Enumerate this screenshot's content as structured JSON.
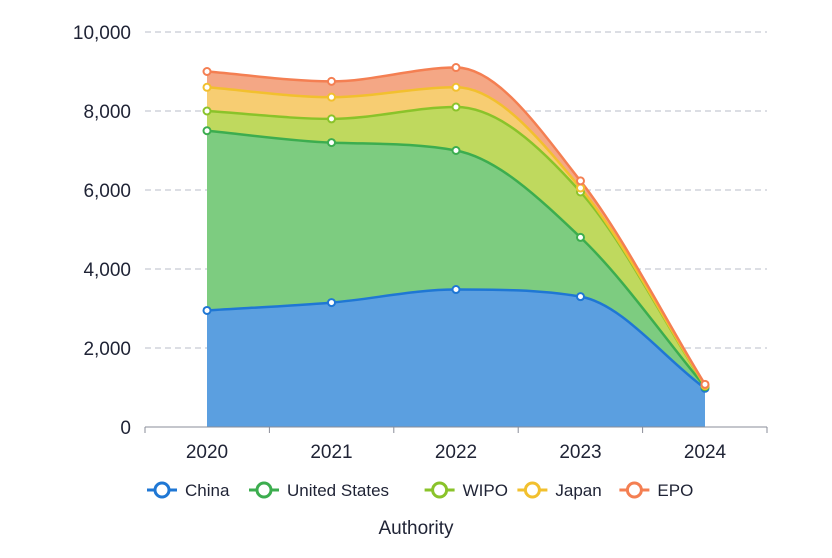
{
  "chart_data": {
    "type": "area",
    "stacked": true,
    "x": [
      "2020",
      "2021",
      "2022",
      "2023",
      "2024"
    ],
    "ylim": [
      0,
      10000
    ],
    "yticks": [
      "0",
      "2,000",
      "4,000",
      "6,000",
      "8,000",
      "10,000"
    ],
    "grid": true,
    "legend_position": "bottom",
    "xlabel": "Authority",
    "ylabel": "",
    "series": [
      {
        "name": "China",
        "values": [
          2950,
          3150,
          3480,
          3300,
          980
        ],
        "color": "#1f77d4",
        "fill": "#5b9fe0"
      },
      {
        "name": "United States",
        "values": [
          4550,
          4050,
          3520,
          1500,
          40
        ],
        "color": "#3cad4f",
        "fill": "#7dcc80"
      },
      {
        "name": "WIPO",
        "values": [
          500,
          600,
          1100,
          1150,
          20
        ],
        "color": "#8ac32a",
        "fill": "#bfd95e"
      },
      {
        "name": "Japan",
        "values": [
          600,
          550,
          500,
          100,
          10
        ],
        "color": "#f2c02e",
        "fill": "#f7cd72"
      },
      {
        "name": "EPO",
        "values": [
          400,
          400,
          500,
          180,
          30
        ],
        "color": "#f47f52",
        "fill": "#f4a785"
      }
    ]
  }
}
